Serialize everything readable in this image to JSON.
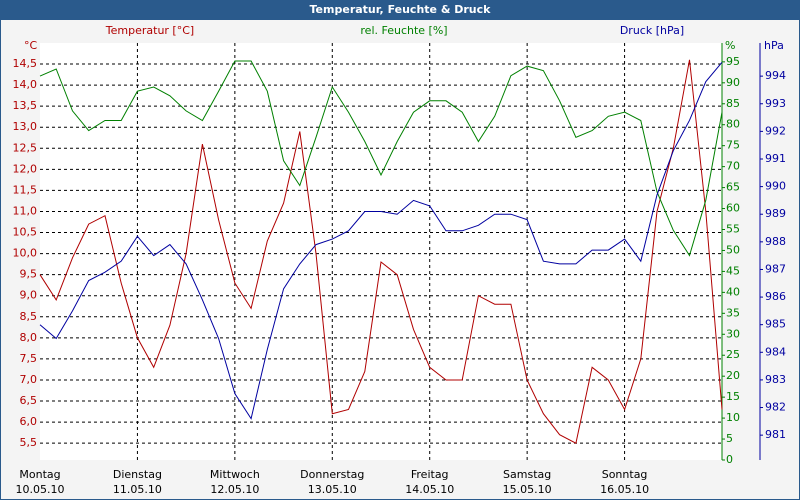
{
  "chart_data": {
    "type": "line",
    "title": "Temperatur, Feuchte & Druck",
    "x": [
      0,
      4,
      8,
      12,
      16,
      20,
      24,
      28,
      32,
      36,
      40,
      44,
      48,
      52,
      56,
      60,
      64,
      68,
      72,
      76,
      80,
      84,
      88,
      92,
      96,
      100,
      104,
      108,
      112,
      116,
      120,
      124,
      128,
      132,
      136,
      140,
      144,
      148,
      152,
      156,
      160,
      164,
      168
    ],
    "xlim": [
      0,
      168
    ],
    "xticks": [
      {
        "value": 0,
        "label": [
          "Montag",
          "10.05.10"
        ]
      },
      {
        "value": 24,
        "label": [
          "Dienstag",
          "11.05.10"
        ]
      },
      {
        "value": 48,
        "label": [
          "Mittwoch",
          "12.05.10"
        ]
      },
      {
        "value": 72,
        "label": [
          "Donnerstag",
          "13.05.10"
        ]
      },
      {
        "value": 96,
        "label": [
          "Freitag",
          "14.05.10"
        ]
      },
      {
        "value": 120,
        "label": [
          "Samstag",
          "15.05.10"
        ]
      },
      {
        "value": 144,
        "label": [
          "Sonntag",
          "16.05.10"
        ]
      }
    ],
    "grid": true,
    "ylim": [
      5.1,
      15.0
    ],
    "yunit": "°C",
    "yticks": [
      {
        "value": 5.5,
        "label": "5,5"
      },
      {
        "value": 6,
        "label": "6,0"
      },
      {
        "value": 6.5,
        "label": "6,5"
      },
      {
        "value": 7,
        "label": "7,0"
      },
      {
        "value": 7.5,
        "label": "7,5"
      },
      {
        "value": 8,
        "label": "8,0"
      },
      {
        "value": 8.5,
        "label": "8,5"
      },
      {
        "value": 9,
        "label": "9,0"
      },
      {
        "value": 9.5,
        "label": "9,5"
      },
      {
        "value": 10,
        "label": "10,0"
      },
      {
        "value": 10.5,
        "label": "10,5"
      },
      {
        "value": 11,
        "label": "11,0"
      },
      {
        "value": 11.5,
        "label": "11,5"
      },
      {
        "value": 12,
        "label": "12,0"
      },
      {
        "value": 12.5,
        "label": "12,5"
      },
      {
        "value": 13,
        "label": "13,0"
      },
      {
        "value": 13.5,
        "label": "13,5"
      },
      {
        "value": 14,
        "label": "14,0"
      },
      {
        "value": 14.5,
        "label": "14,5"
      }
    ],
    "y2lim": [
      0,
      99.5
    ],
    "y2unit": "%",
    "y2ticks": [
      0,
      5,
      10,
      15,
      20,
      25,
      30,
      35,
      40,
      45,
      50,
      55,
      60,
      65,
      70,
      75,
      80,
      85,
      90,
      95
    ],
    "y3lim": [
      980.1,
      995.2
    ],
    "y3unit": "hPa",
    "y3ticks": [
      981,
      982,
      983,
      984,
      985,
      986,
      987,
      988,
      989,
      990,
      991,
      992,
      993,
      994
    ],
    "series": [
      {
        "name": "Temperatur [°C]",
        "color": "#b00000",
        "axis": "y",
        "values": [
          9.5,
          8.9,
          9.9,
          10.7,
          10.9,
          9.3,
          8.0,
          7.3,
          8.3,
          10.0,
          12.6,
          10.8,
          9.3,
          8.7,
          10.3,
          11.2,
          12.9,
          10.0,
          6.2,
          6.3,
          7.2,
          9.8,
          9.5,
          8.2,
          7.3,
          7.0,
          7.0,
          9.0,
          8.8,
          8.8,
          7.0,
          6.2,
          5.7,
          5.5,
          7.3,
          7.0,
          6.3,
          7.5,
          11.0,
          12.5,
          14.6,
          11.0,
          6.3
        ]
      },
      {
        "name": "rel. Feuchte [%]",
        "color": "#008000",
        "axis": "y2",
        "values": [
          91.6,
          93.3,
          83.3,
          78.6,
          81,
          81,
          88,
          89,
          86.9,
          83.3,
          81,
          88,
          95.2,
          95.2,
          88,
          71.4,
          65.5,
          77,
          89,
          83,
          76,
          68,
          76,
          83,
          85.7,
          85.7,
          83,
          76,
          82,
          91.7,
          94,
          92.9,
          85.7,
          77,
          78.6,
          82,
          83,
          81,
          64,
          54.8,
          48.8,
          62,
          83
        ]
      },
      {
        "name": "Druck [hPa]",
        "color": "#0000a0",
        "axis": "y3",
        "values": [
          985.0,
          984.5,
          985.5,
          986.6,
          986.9,
          987.3,
          988.2,
          987.5,
          987.9,
          987.2,
          985.9,
          984.5,
          982.5,
          981.6,
          984.1,
          986.3,
          987.2,
          987.9,
          988.1,
          988.4,
          989.1,
          989.1,
          989.0,
          989.5,
          989.3,
          988.4,
          988.4,
          988.6,
          989.0,
          989.0,
          988.8,
          987.3,
          987.2,
          987.2,
          987.7,
          987.7,
          988.1,
          987.3,
          989.7,
          991.3,
          992.4,
          993.8,
          994.5
        ]
      }
    ]
  }
}
